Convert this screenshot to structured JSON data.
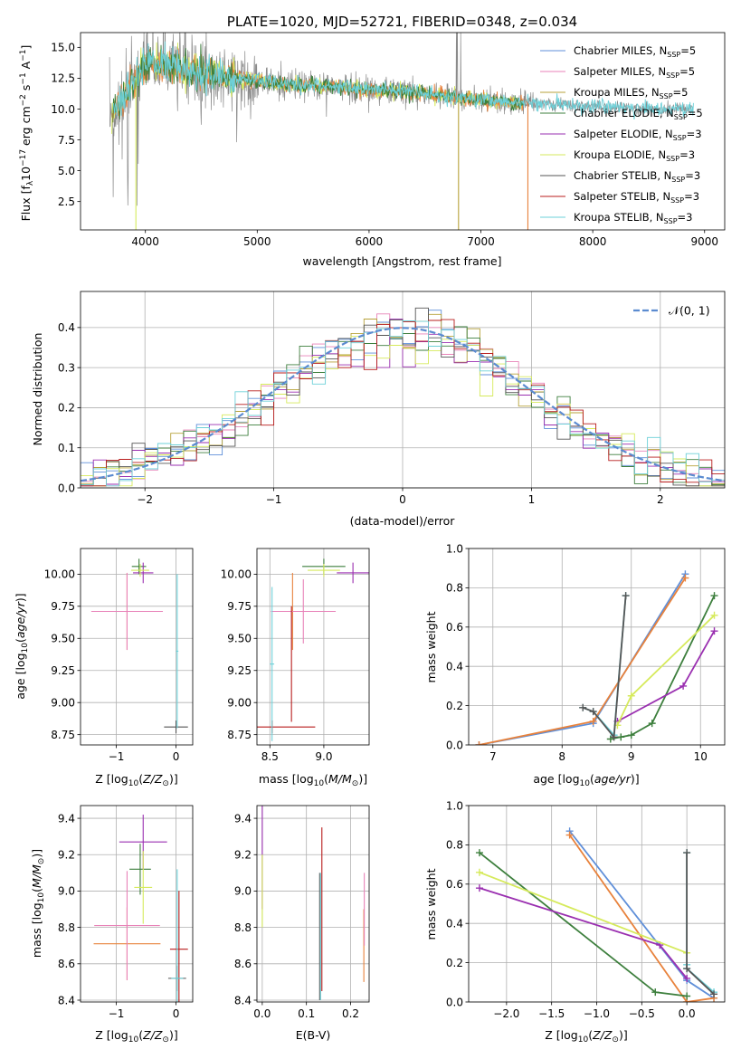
{
  "colors": {
    "Chabrier MILES": "#5f8fd9",
    "Salpeter MILES": "#e882b8",
    "Kroupa MILES": "#b7a23a",
    "Chabrier ELODIE": "#3d7f3d",
    "Salpeter ELODIE": "#9a2fb0",
    "Kroupa ELODIE": "#d6ea5c",
    "Chabrier STELIB": "#555555",
    "Salpeter STELIB": "#b81c1c",
    "Kroupa STELIB": "#6dd0d8",
    "data": "#8a8a8a",
    "model_orange": "#e8823c",
    "normal": "#5b8bd0"
  },
  "chart_data": [
    {
      "id": "spectrum",
      "type": "line",
      "title": "PLATE=1020, MJD=52721, FIBERID=0348, z=0.034",
      "xlabel": "wavelength [Angstrom, rest frame]",
      "ylabel": "Flux [f_λ10^-17 erg cm^-2 s^-1 A^-1]",
      "xlim": [
        3420,
        9180
      ],
      "ylim": [
        0.2,
        16.2
      ],
      "xticks": [
        "4000",
        "5000",
        "6000",
        "7000",
        "8000",
        "9000"
      ],
      "yticks": [
        "2.5",
        "5.0",
        "7.5",
        "10.0",
        "12.5",
        "15.0"
      ],
      "legend_position": "top-right",
      "series": [
        {
          "name": "Chabrier MILES, N_SSP=5",
          "key": "Chabrier MILES"
        },
        {
          "name": "Salpeter MILES, N_SSP=5",
          "key": "Salpeter MILES"
        },
        {
          "name": "Kroupa MILES, N_SSP=5",
          "key": "Kroupa MILES"
        },
        {
          "name": "Chabrier ELODIE, N_SSP=5",
          "key": "Chabrier ELODIE"
        },
        {
          "name": "Salpeter ELODIE, N_SSP=3",
          "key": "Salpeter ELODIE"
        },
        {
          "name": "Kroupa ELODIE, N_SSP=3",
          "key": "Kroupa ELODIE"
        },
        {
          "name": "Chabrier STELIB, N_SSP=3",
          "key": "Chabrier STELIB"
        },
        {
          "name": "Salpeter STELIB, N_SSP=3",
          "key": "Salpeter STELIB"
        },
        {
          "name": "Kroupa STELIB, N_SSP=3",
          "key": "Kroupa STELIB"
        }
      ],
      "continuum": {
        "x": [
          3700,
          3800,
          3900,
          4000,
          4100,
          4200,
          4400,
          4600,
          4800,
          5000,
          5200,
          5500,
          6000,
          6500,
          7000,
          7400,
          8000,
          8500,
          8900
        ],
        "y": [
          9.5,
          10.8,
          12.3,
          13.6,
          13.7,
          13.4,
          13.1,
          12.8,
          12.5,
          12.3,
          12.0,
          11.9,
          11.6,
          11.3,
          10.7,
          10.5,
          10.2,
          10.0,
          10.0
        ]
      },
      "dips": [
        {
          "x": 3915,
          "y": 0.2,
          "key": "Kroupa ELODIE"
        },
        {
          "x": 6800,
          "y": 0.2,
          "key": "Kroupa MILES"
        },
        {
          "x": 7420,
          "y": 0.2,
          "key": "model_orange"
        }
      ]
    },
    {
      "id": "residuals",
      "type": "line",
      "xlabel": "(data-model)/error",
      "ylabel": "Normed distribution",
      "xlim": [
        -2.5,
        2.5
      ],
      "ylim": [
        0,
        0.49
      ],
      "xticks": [
        "−2",
        "−1",
        "0",
        "1",
        "2"
      ],
      "yticks": [
        "0.0",
        "0.1",
        "0.2",
        "0.3",
        "0.4"
      ],
      "legend": "𝒩(0, 1)",
      "legend_position": "top-right",
      "bin_width": 0.1
    },
    {
      "id": "age_vs_z",
      "type": "scatter",
      "xlabel": "Z [log10(Z/Z⊙)]",
      "ylabel": "age  [log10(age/yr)]",
      "xlim": [
        -1.6,
        0.28
      ],
      "ylim": [
        8.67,
        10.2
      ],
      "xticks": [
        "−1",
        "0"
      ],
      "yticks": [
        "8.75",
        "9.00",
        "9.25",
        "9.50",
        "9.75",
        "10.00"
      ],
      "points": [
        {
          "x": -0.82,
          "y": 9.71,
          "xerr": 0.56,
          "yerr": 0.3,
          "key": "model_orange"
        },
        {
          "x": -0.82,
          "y": 9.71,
          "xerr": 0.6,
          "yerr": 0.3,
          "key": "Salpeter MILES"
        },
        {
          "x": -0.62,
          "y": 10.06,
          "xerr": 0.12,
          "yerr": 0.06,
          "key": "Chabrier ELODIE"
        },
        {
          "x": -0.55,
          "y": 10.01,
          "xerr": 0.17,
          "yerr": 0.08,
          "key": "Salpeter ELODIE"
        },
        {
          "x": -0.6,
          "y": 10.03,
          "xerr": 0.15,
          "yerr": 0.05,
          "key": "Kroupa ELODIE"
        },
        {
          "x": 0.0,
          "y": 8.81,
          "xerr": 0.2,
          "yerr": 0.05,
          "key": "Chabrier STELIB"
        },
        {
          "x": 0.02,
          "y": 9.4,
          "xerr": 0.02,
          "yerr": 0.6,
          "key": "Kroupa STELIB"
        }
      ]
    },
    {
      "id": "age_vs_mass",
      "type": "scatter",
      "xlabel": "mass [log10(M/M⊙)]",
      "ylabel": "",
      "xlim": [
        8.38,
        9.42
      ],
      "ylim": [
        8.67,
        10.2
      ],
      "xticks": [
        "8.5",
        "9.0"
      ],
      "yticks": [
        "8.75",
        "9.00",
        "9.25",
        "9.50",
        "9.75",
        "10.00"
      ],
      "points": [
        {
          "x": 8.71,
          "y": 9.71,
          "xerr": 0.2,
          "yerr": 0.3,
          "key": "model_orange"
        },
        {
          "x": 8.81,
          "y": 9.71,
          "xerr": 0.3,
          "yerr": 0.25,
          "key": "Salpeter MILES"
        },
        {
          "x": 9.0,
          "y": 10.06,
          "xerr": 0.2,
          "yerr": 0.06,
          "key": "Chabrier ELODIE"
        },
        {
          "x": 9.27,
          "y": 10.01,
          "xerr": 0.15,
          "yerr": 0.08,
          "key": "Salpeter ELODIE"
        },
        {
          "x": 9.0,
          "y": 10.03,
          "xerr": 0.15,
          "yerr": 0.05,
          "key": "Kroupa ELODIE"
        },
        {
          "x": 8.7,
          "y": 9.3,
          "xerr": 0.0,
          "yerr": 0.45,
          "key": "Salpeter STELIB"
        },
        {
          "x": 8.52,
          "y": 8.81,
          "xerr": 0.4,
          "yerr": 0.05,
          "key": "Salpeter STELIB"
        },
        {
          "x": 8.52,
          "y": 9.3,
          "xerr": 0.02,
          "yerr": 0.6,
          "key": "Kroupa STELIB"
        }
      ]
    },
    {
      "id": "mass_weight_vs_age",
      "type": "line",
      "xlabel": "age  [log10(age/yr)]",
      "ylabel": "mass weight",
      "xlim": [
        6.65,
        10.35
      ],
      "ylim": [
        0,
        1
      ],
      "xticks": [
        "7",
        "8",
        "9",
        "10"
      ],
      "yticks": [
        "0.0",
        "0.2",
        "0.4",
        "0.6",
        "0.8",
        "1.0"
      ],
      "series": [
        {
          "key": "Chabrier MILES",
          "x": [
            6.8,
            8.45,
            9.78
          ],
          "y": [
            0.0,
            0.11,
            0.87
          ]
        },
        {
          "key": "model_orange",
          "x": [
            6.8,
            8.45,
            9.78
          ],
          "y": [
            0.0,
            0.12,
            0.85
          ]
        },
        {
          "key": "Chabrier ELODIE",
          "x": [
            8.7,
            8.85,
            9.0,
            9.3,
            10.2
          ],
          "y": [
            0.03,
            0.04,
            0.05,
            0.11,
            0.76
          ]
        },
        {
          "key": "Salpeter ELODIE",
          "x": [
            8.8,
            9.75,
            10.2
          ],
          "y": [
            0.12,
            0.3,
            0.58
          ]
        },
        {
          "key": "Kroupa ELODIE",
          "x": [
            8.8,
            9.0,
            10.2
          ],
          "y": [
            0.1,
            0.25,
            0.66
          ]
        },
        {
          "key": "Kroupa STELIB",
          "x": [
            8.3,
            8.45,
            8.75,
            8.92
          ],
          "y": [
            0.19,
            0.17,
            0.05,
            0.76
          ]
        },
        {
          "key": "Chabrier STELIB",
          "x": [
            8.3,
            8.45,
            8.75,
            8.92
          ],
          "y": [
            0.19,
            0.17,
            0.04,
            0.76
          ]
        }
      ]
    },
    {
      "id": "mass_vs_z",
      "type": "scatter",
      "xlabel": "Z [log10(Z/Z⊙)]",
      "ylabel": "mass [log10(M/M⊙)]",
      "xlim": [
        -1.6,
        0.28
      ],
      "ylim": [
        8.39,
        9.47
      ],
      "xticks": [
        "−1",
        "0"
      ],
      "yticks": [
        "8.4",
        "8.6",
        "8.8",
        "9.0",
        "9.2",
        "9.4"
      ],
      "points": [
        {
          "x": -0.82,
          "y": 8.71,
          "xerr": 0.56,
          "yerr": 0.2,
          "key": "model_orange"
        },
        {
          "x": -0.82,
          "y": 8.81,
          "xerr": 0.55,
          "yerr": 0.3,
          "key": "Salpeter MILES"
        },
        {
          "x": -0.6,
          "y": 9.12,
          "xerr": 0.18,
          "yerr": 0.14,
          "key": "Chabrier ELODIE"
        },
        {
          "x": -0.55,
          "y": 9.27,
          "xerr": 0.4,
          "yerr": 0.15,
          "key": "Salpeter ELODIE"
        },
        {
          "x": -0.55,
          "y": 9.02,
          "xerr": 0.15,
          "yerr": 0.2,
          "key": "Kroupa ELODIE"
        },
        {
          "x": 0.05,
          "y": 8.68,
          "xerr": 0.15,
          "yerr": 0.32,
          "key": "Salpeter STELIB"
        },
        {
          "x": 0.02,
          "y": 8.52,
          "xerr": 0.15,
          "yerr": 0.07,
          "key": "Chabrier STELIB"
        },
        {
          "x": 0.02,
          "y": 8.52,
          "xerr": 0.1,
          "yerr": 0.6,
          "key": "Kroupa STELIB"
        }
      ]
    },
    {
      "id": "mass_vs_ebv",
      "type": "scatter",
      "xlabel": "E(B-V)",
      "ylabel": "",
      "xlim": [
        -0.012,
        0.242
      ],
      "ylim": [
        8.39,
        9.47
      ],
      "xticks": [
        "0.0",
        "0.1",
        "0.2"
      ],
      "yticks": [
        "8.4",
        "8.6",
        "8.8",
        "9.0",
        "9.2",
        "9.4"
      ],
      "points": [
        {
          "x": 0.0,
          "y": 9.2,
          "xerr": 0.0,
          "yerr": 0.3,
          "key": "Salpeter ELODIE"
        },
        {
          "x": 0.0,
          "y": 9.0,
          "xerr": 0.0,
          "yerr": 0.2,
          "key": "Kroupa ELODIE"
        },
        {
          "x": 0.135,
          "y": 8.9,
          "xerr": 0.0,
          "yerr": 0.45,
          "key": "Salpeter STELIB"
        },
        {
          "x": 0.13,
          "y": 8.75,
          "xerr": 0.0,
          "yerr": 0.35,
          "key": "Chabrier STELIB"
        },
        {
          "x": 0.132,
          "y": 8.75,
          "xerr": 0.0,
          "yerr": 0.35,
          "key": "Kroupa STELIB"
        },
        {
          "x": 0.23,
          "y": 8.7,
          "xerr": 0.0,
          "yerr": 0.2,
          "key": "model_orange"
        },
        {
          "x": 0.231,
          "y": 8.9,
          "xerr": 0.0,
          "yerr": 0.2,
          "key": "Salpeter MILES"
        }
      ]
    },
    {
      "id": "mass_weight_vs_z",
      "type": "line",
      "xlabel": "Z [log10(Z/Z⊙)]",
      "ylabel": "mass weight",
      "xlim": [
        -2.42,
        0.42
      ],
      "ylim": [
        0,
        1
      ],
      "xticks": [
        "−2.0",
        "−1.5",
        "−1.0",
        "−0.5",
        "0.0"
      ],
      "yticks": [
        "0.0",
        "0.2",
        "0.4",
        "0.6",
        "0.8",
        "1.0"
      ],
      "series": [
        {
          "key": "Chabrier MILES",
          "x": [
            -1.3,
            0.0,
            0.3
          ],
          "y": [
            0.87,
            0.11,
            0.02
          ]
        },
        {
          "key": "model_orange",
          "x": [
            -1.3,
            0.0,
            0.3
          ],
          "y": [
            0.85,
            0.0,
            0.02
          ]
        },
        {
          "key": "Chabrier ELODIE",
          "x": [
            -2.3,
            -0.35,
            0.0
          ],
          "y": [
            0.76,
            0.05,
            0.03
          ]
        },
        {
          "key": "Salpeter ELODIE",
          "x": [
            -2.3,
            -0.3,
            0.0
          ],
          "y": [
            0.58,
            0.29,
            0.12
          ]
        },
        {
          "key": "Kroupa ELODIE",
          "x": [
            -2.3,
            0.0
          ],
          "y": [
            0.66,
            0.25
          ]
        },
        {
          "key": "Kroupa STELIB",
          "x": [
            0.0,
            0.0,
            0.0,
            0.3
          ],
          "y": [
            0.76,
            0.19,
            0.17,
            0.05
          ]
        },
        {
          "key": "Chabrier STELIB",
          "x": [
            0.0,
            0.0,
            0.3
          ],
          "y": [
            0.76,
            0.17,
            0.04
          ]
        }
      ]
    }
  ]
}
